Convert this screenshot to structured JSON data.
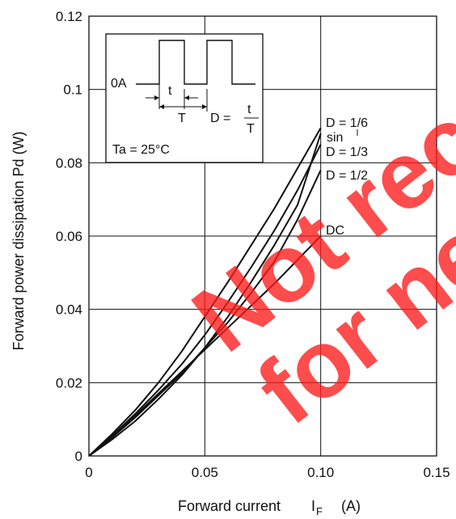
{
  "chart_data": {
    "type": "line",
    "xlabel": "Forward current",
    "xlabel_symbol": "I",
    "xlabel_subscript": "F",
    "xlabel_unit": "(A)",
    "ylabel": "Forward power dissipation   Pd   (W)",
    "xlim": [
      0,
      0.15
    ],
    "ylim": [
      0,
      0.12
    ],
    "x_ticks": [
      "0",
      "0.05",
      "0.10",
      "0.15"
    ],
    "y_ticks": [
      "0",
      "0.02",
      "0.04",
      "0.06",
      "0.08",
      "0.1",
      "0.12"
    ],
    "grid": true,
    "series": [
      {
        "name": "D = 1/6",
        "x": [
          0,
          0.01,
          0.02,
          0.03,
          0.04,
          0.05,
          0.06,
          0.07,
          0.08,
          0.09,
          0.1
        ],
        "y": [
          0,
          0.006,
          0.0125,
          0.02,
          0.0285,
          0.038,
          0.0475,
          0.0575,
          0.0675,
          0.0785,
          0.0895
        ]
      },
      {
        "name": "sin",
        "x": [
          0,
          0.01,
          0.02,
          0.03,
          0.04,
          0.05,
          0.06,
          0.07,
          0.08,
          0.09,
          0.1
        ],
        "y": [
          0,
          0.0045,
          0.0095,
          0.0155,
          0.022,
          0.0295,
          0.038,
          0.0475,
          0.0575,
          0.0685,
          0.088
        ]
      },
      {
        "name": "D = 1/3",
        "x": [
          0,
          0.01,
          0.02,
          0.03,
          0.04,
          0.05,
          0.06,
          0.07,
          0.08,
          0.09,
          0.1
        ],
        "y": [
          0,
          0.0055,
          0.0115,
          0.018,
          0.025,
          0.033,
          0.042,
          0.0515,
          0.0615,
          0.0725,
          0.085
        ]
      },
      {
        "name": "D = 1/2",
        "x": [
          0,
          0.01,
          0.02,
          0.03,
          0.04,
          0.05,
          0.06,
          0.07,
          0.08,
          0.09,
          0.1
        ],
        "y": [
          0,
          0.005,
          0.0105,
          0.0165,
          0.0225,
          0.0295,
          0.0365,
          0.0445,
          0.053,
          0.0645,
          0.078
        ]
      },
      {
        "name": "DC",
        "x": [
          0,
          0.01,
          0.02,
          0.03,
          0.04,
          0.05,
          0.06,
          0.07,
          0.08,
          0.09,
          0.1
        ],
        "y": [
          0,
          0.0055,
          0.011,
          0.017,
          0.023,
          0.029,
          0.035,
          0.041,
          0.047,
          0.0535,
          0.06
        ]
      }
    ],
    "inset": {
      "zero_label": "0A",
      "pulse_width_label": "t",
      "period_label": "T",
      "duty_prefix": "D =",
      "duty_numerator": "t",
      "duty_denominator": "T",
      "temperature": "Ta = 25°C"
    },
    "watermark": [
      "Not recommended",
      "for new design"
    ]
  }
}
